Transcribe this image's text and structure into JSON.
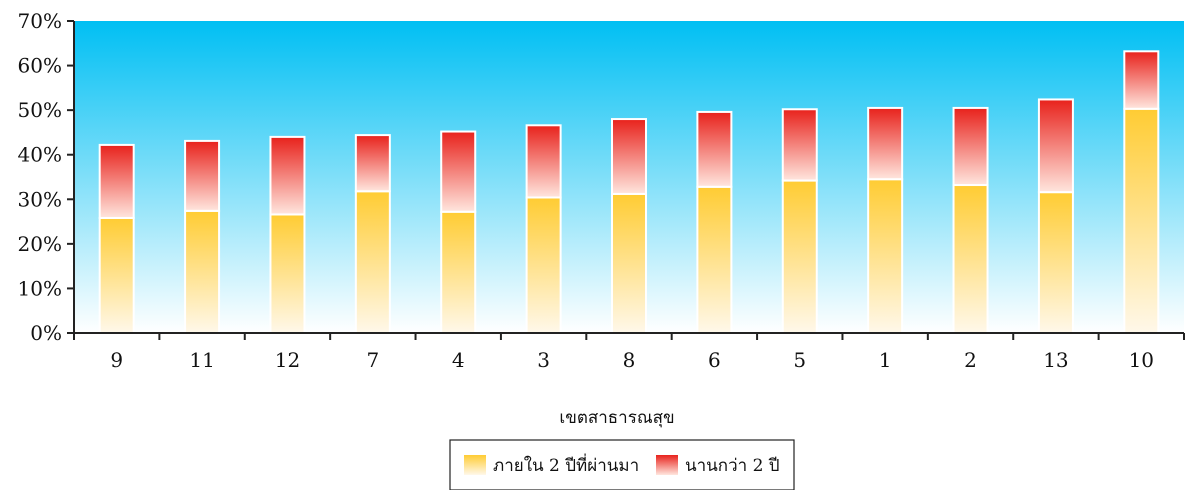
{
  "chart_data": {
    "type": "bar",
    "stacked": true,
    "xlabel": "เขตสาธารณสุข",
    "ylabel": "",
    "ylim": [
      0,
      70
    ],
    "yticks": [
      "0%",
      "10%",
      "20%",
      "30%",
      "40%",
      "50%",
      "60%",
      "70%"
    ],
    "categories": [
      "9",
      "11",
      "12",
      "7",
      "4",
      "3",
      "8",
      "6",
      "5",
      "1",
      "2",
      "13",
      "10"
    ],
    "series": [
      {
        "name": "ภายใน 2 ปีที่ผ่านมา",
        "values": [
          25.8,
          27.4,
          26.6,
          31.8,
          27.2,
          30.4,
          31.2,
          32.8,
          34.2,
          34.5,
          33.2,
          31.6,
          50.3
        ]
      },
      {
        "name": "นานกว่า 2 ปี",
        "values": [
          16.4,
          15.7,
          17.4,
          12.6,
          18.0,
          16.2,
          16.8,
          16.8,
          16.0,
          16.0,
          17.3,
          20.8,
          12.9
        ]
      }
    ],
    "legend_position": "bottom",
    "grid": false,
    "colors": {
      "series_1": "#FFCC33",
      "series_2": "#E8221C",
      "plot_top": "#00BFF3",
      "plot_bottom": "#FFFFFF"
    }
  }
}
